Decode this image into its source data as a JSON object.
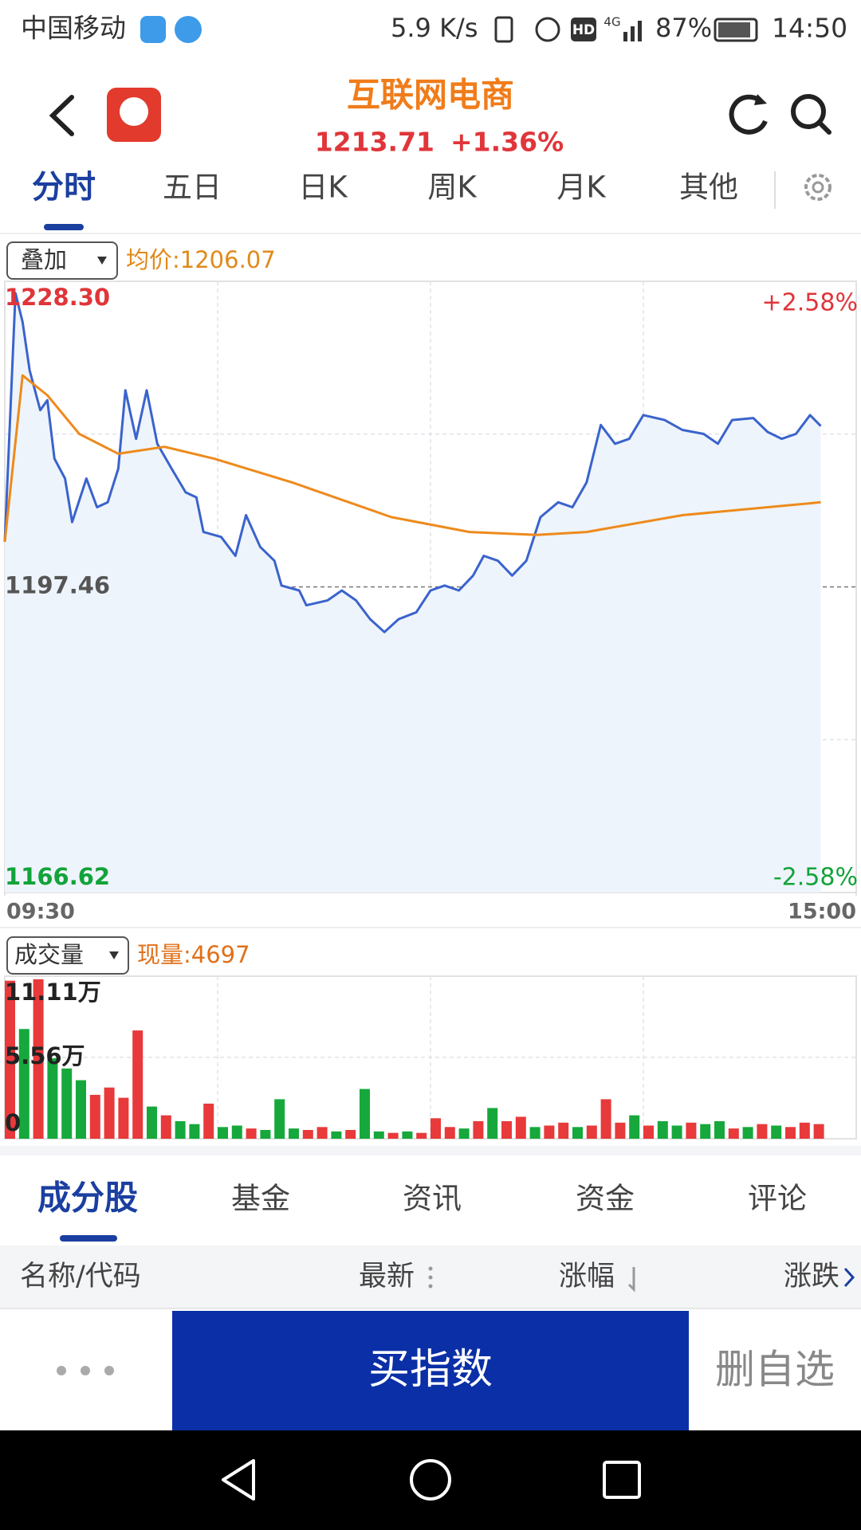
{
  "status_bar": {
    "carrier": "中国移动",
    "speed": "5.9 K/s",
    "hd": "HD",
    "network": "4G",
    "battery": "87%",
    "time": "14:50"
  },
  "header": {
    "title": "互联网电商",
    "price": "1213.71",
    "change": "+1.36%"
  },
  "tabs": [
    "分时",
    "五日",
    "日K",
    "周K",
    "月K",
    "其他"
  ],
  "overlay_select": "叠加",
  "avg_price": "均价:1206.07",
  "volume_select": "成交量",
  "current_volume": "现量:4697",
  "chart_data": [
    {
      "type": "line",
      "series": [
        {
          "color": "#3a63cc",
          "x": [
            0,
            3,
            5,
            7,
            10,
            12,
            14,
            17,
            19,
            23,
            26,
            29,
            32,
            34,
            37,
            40,
            43,
            47,
            51,
            54,
            56,
            61,
            65,
            68,
            72,
            76,
            78,
            83,
            85,
            91,
            95,
            99,
            103,
            107,
            111,
            116,
            120,
            124,
            128,
            132,
            135,
            139,
            143,
            147,
            151,
            156,
            160,
            164,
            168,
            172,
            176,
            180,
            186,
            191,
            197,
            201,
            205,
            211,
            215,
            219,
            223,
            227,
            230
          ],
          "values": [
            1202.0,
            1227.1,
            1224.2,
            1219.3,
            1215.3,
            1216.3,
            1210.4,
            1208.4,
            1204.0,
            1208.4,
            1205.5,
            1206.0,
            1209.4,
            1217.3,
            1212.4,
            1217.3,
            1211.9,
            1209.4,
            1207.0,
            1206.5,
            1203.0,
            1202.5,
            1200.6,
            1204.7,
            1201.5,
            1200.1,
            1197.6,
            1197.1,
            1195.6,
            1196.1,
            1197.1,
            1196.1,
            1194.2,
            1192.9,
            1194.2,
            1194.9,
            1197.1,
            1197.6,
            1197.1,
            1198.6,
            1200.6,
            1200.1,
            1198.6,
            1200.1,
            1204.5,
            1206.0,
            1205.5,
            1208.0,
            1213.8,
            1211.9,
            1212.4,
            1214.8,
            1214.3,
            1213.3,
            1212.9,
            1211.9,
            1214.3,
            1214.5,
            1213.1,
            1212.4,
            1212.9,
            1214.8,
            1213.7
          ]
        },
        {
          "color": "#ee8a1c",
          "x": [
            0,
            5,
            12,
            21,
            32,
            45,
            59,
            81,
            109,
            131,
            150,
            164,
            191,
            230
          ],
          "values": [
            1202.0,
            1218.8,
            1216.8,
            1212.9,
            1210.9,
            1211.6,
            1210.4,
            1208.0,
            1204.5,
            1203.0,
            1202.7,
            1203.0,
            1204.7,
            1206.0
          ]
        }
      ],
      "xlim": [
        0,
        240
      ],
      "xticks": [
        {
          "value": 0,
          "label": "09:30"
        },
        {
          "value": 240,
          "label": "15:00"
        }
      ],
      "ylim": [
        1166.62,
        1228.3
      ],
      "yticks": [
        1166.62,
        1197.46,
        {
          "value": 1228.3,
          "label": "1228.30"
        }
      ],
      "y2lim": [
        -2.58,
        2.58
      ],
      "y2ticks": [
        {
          "value": -2.58,
          "label": "-2.58%"
        },
        {
          "value": 2.58,
          "label": "+2.58%"
        }
      ]
    },
    {
      "type": "bar",
      "series": [
        {
          "color": "#e8393b",
          "x": [
            0,
            8,
            24,
            28,
            32,
            36,
            44,
            56,
            68,
            84,
            88,
            96,
            108,
            116,
            120,
            124,
            132,
            140,
            144,
            152,
            156,
            164,
            168,
            172,
            180,
            192,
            204,
            212,
            220,
            224,
            228
          ],
          "values": [
            10.8,
            10.9,
            3.0,
            3.5,
            2.8,
            7.4,
            1.6,
            2.4,
            0.7,
            0.6,
            0.8,
            0.6,
            0.4,
            0.4,
            1.4,
            0.8,
            1.2,
            1.2,
            1.5,
            0.9,
            1.1,
            0.9,
            2.7,
            1.1,
            0.9,
            1.1,
            0.7,
            1.0,
            0.8,
            1.1,
            1.0
          ]
        },
        {
          "color": "#16a83c",
          "x": [
            4,
            12,
            16,
            20,
            40,
            48,
            52,
            60,
            64,
            72,
            76,
            80,
            92,
            100,
            104,
            112,
            128,
            136,
            148,
            160,
            176,
            184,
            188,
            196,
            200,
            208,
            216
          ],
          "values": [
            7.5,
            5.5,
            4.8,
            4.0,
            2.2,
            1.2,
            1.0,
            0.8,
            0.9,
            0.6,
            2.7,
            0.7,
            0.5,
            3.4,
            0.5,
            0.5,
            0.7,
            2.1,
            0.8,
            0.8,
            1.6,
            1.2,
            0.9,
            1.0,
            1.2,
            0.8,
            0.9
          ]
        }
      ],
      "xlim": [
        0,
        240
      ],
      "ylim": [
        0,
        11.11
      ],
      "yticks": [
        0,
        {
          "value": 5.56,
          "label": "5.56万"
        },
        {
          "value": 11.11,
          "label": "11.11万"
        }
      ]
    }
  ],
  "bottom_tabs": [
    "成分股",
    "基金",
    "资讯",
    "资金",
    "评论"
  ],
  "table_header": [
    "名称/代码",
    "最新",
    "涨幅",
    "涨跌"
  ],
  "actions": {
    "buy": "买指数",
    "remove": "删自选"
  }
}
